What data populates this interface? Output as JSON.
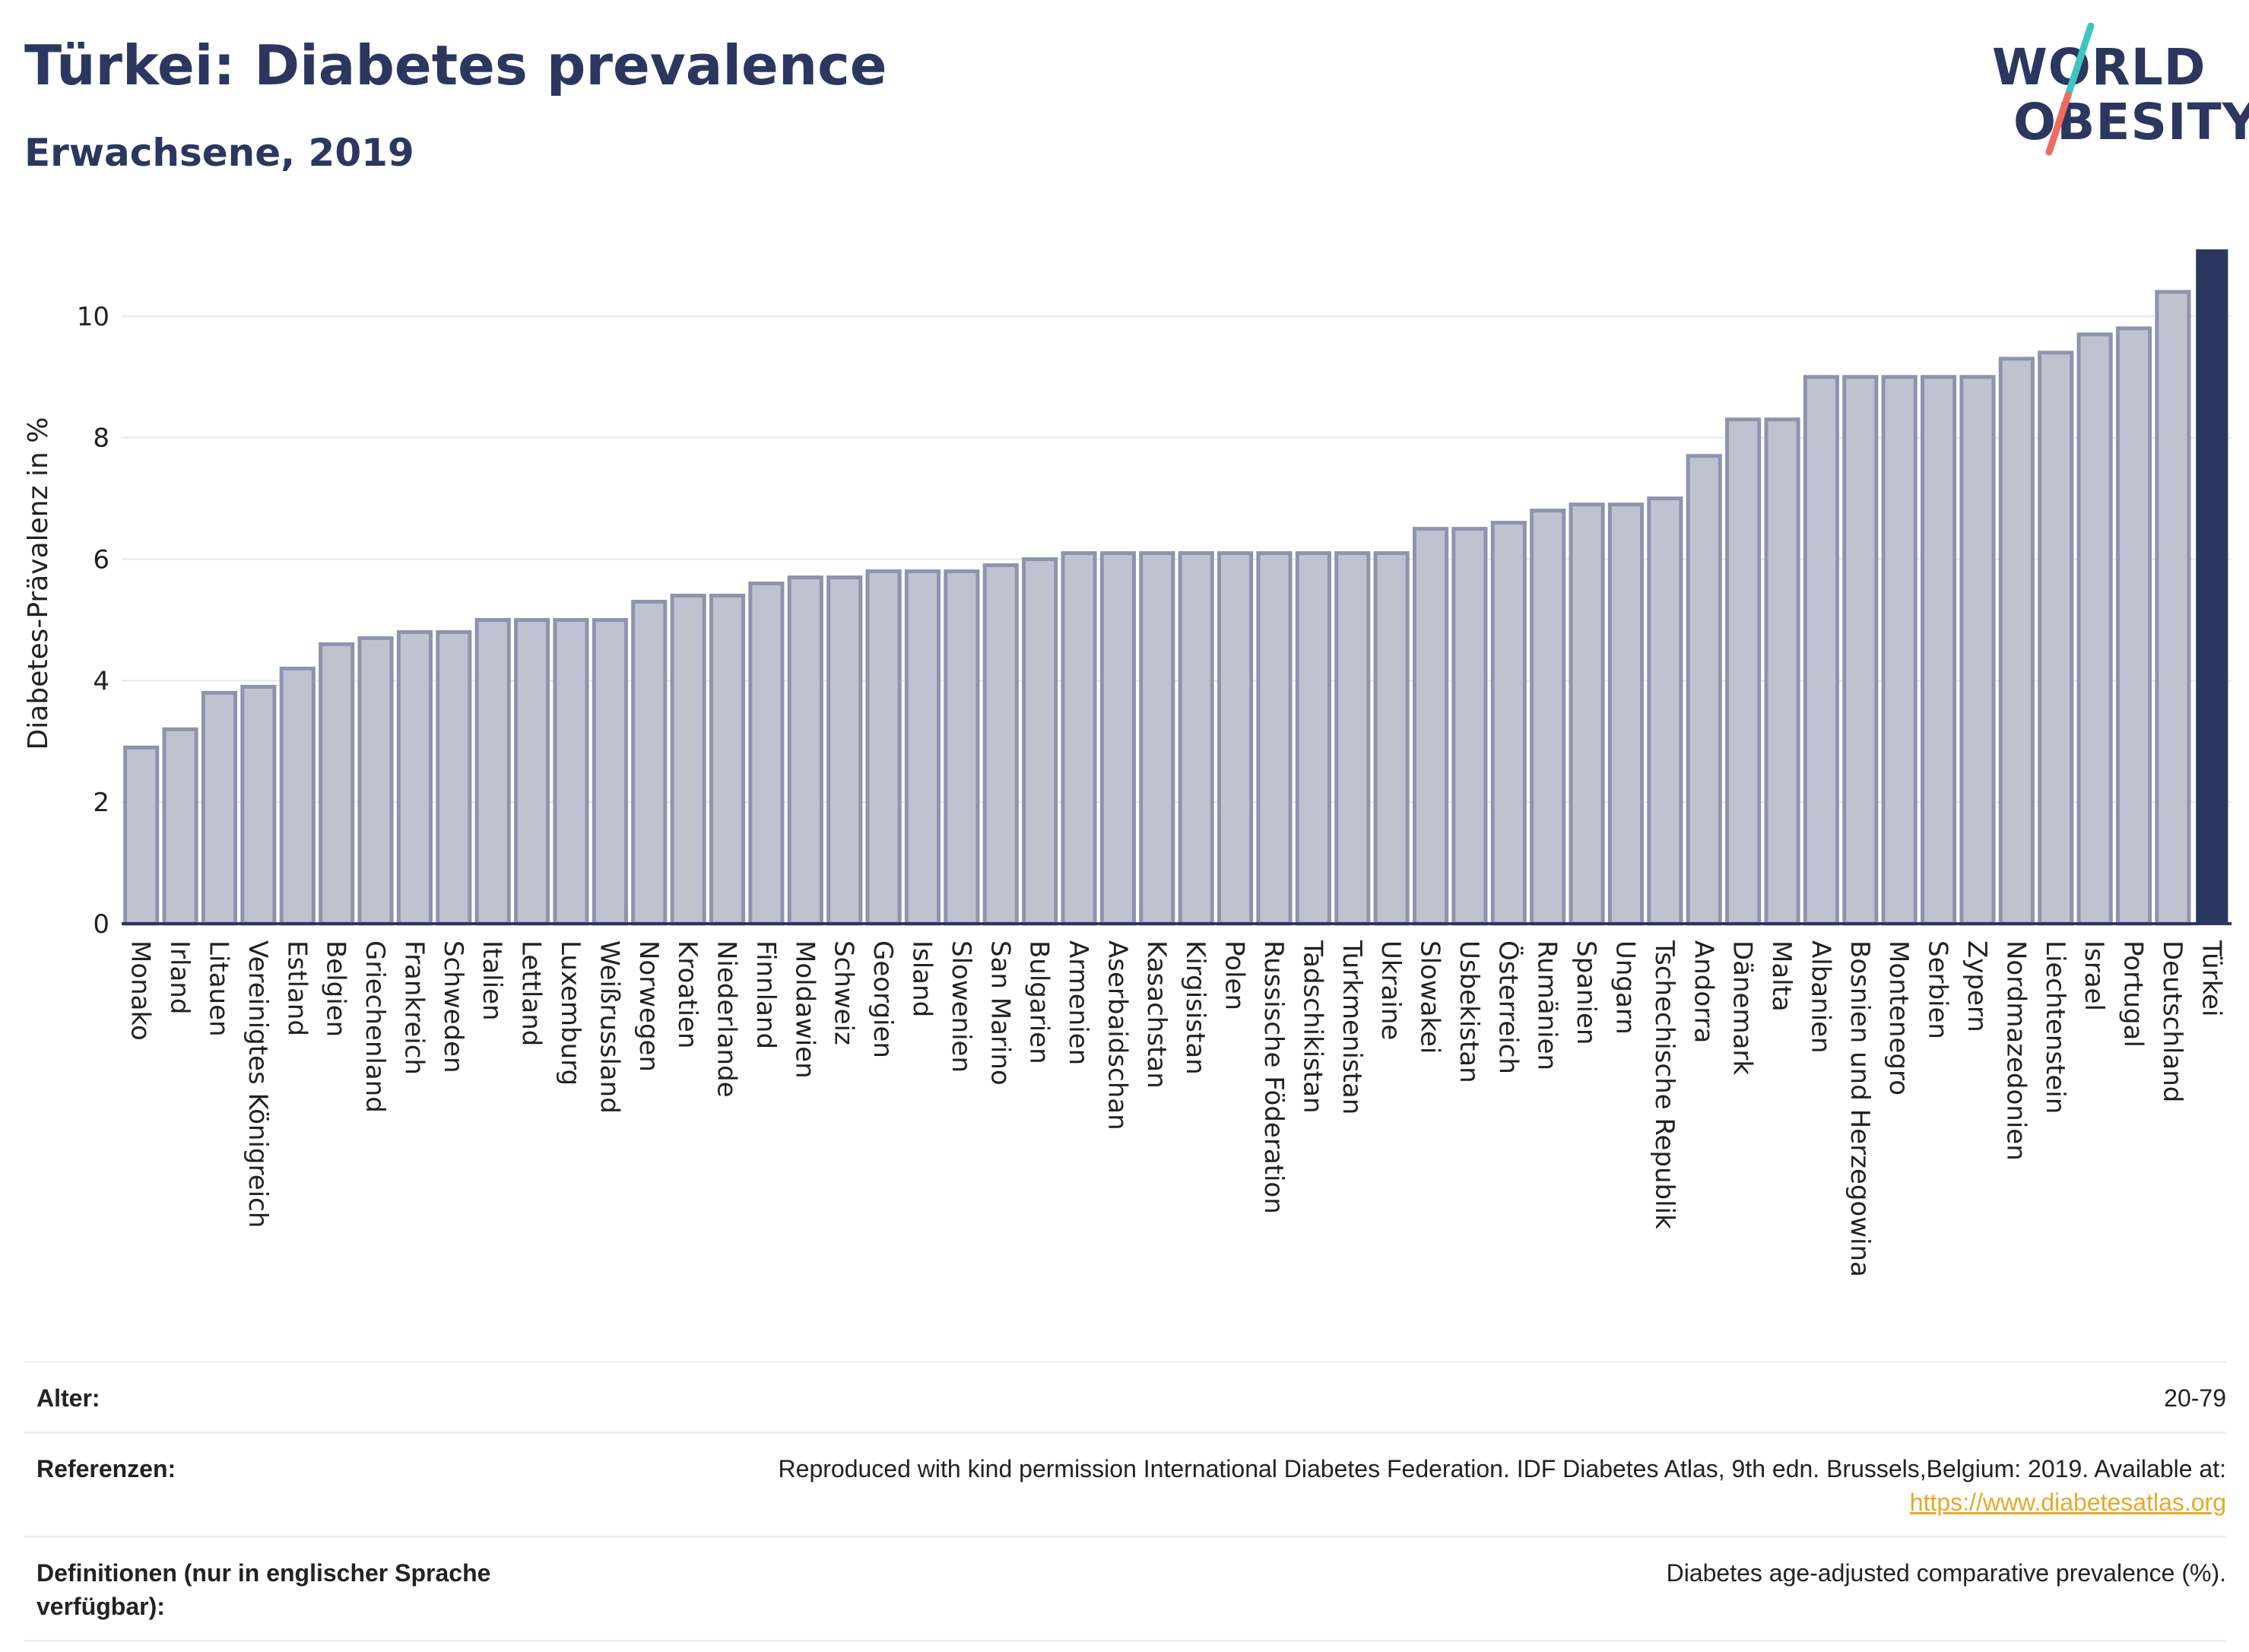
{
  "header": {
    "title": "Türkei: Diabetes prevalence",
    "subtitle": "Erwachsene, 2019"
  },
  "logo": {
    "line1": "WORLD",
    "line2": "OBESITY",
    "slash_color_top": "#3ec6c0",
    "slash_color_bottom": "#ef6b5e"
  },
  "colors": {
    "bar": "#bfc3d1",
    "bar_border": "#8e94ad",
    "highlight": "#2c3760",
    "grid": "#e6e8ef",
    "axis": "#2c3760"
  },
  "chart_data": {
    "type": "bar",
    "ylabel": "Diabetes-Prävalenz in %",
    "xlabel": "",
    "ylim": [
      0,
      11.2
    ],
    "yticks": [
      0,
      2,
      4,
      6,
      8,
      10
    ],
    "grid": true,
    "highlight": "Türkei",
    "categories": [
      "Monako",
      "Irland",
      "Litauen",
      "Vereinigtes Königreich",
      "Estland",
      "Belgien",
      "Griechenland",
      "Frankreich",
      "Schweden",
      "Italien",
      "Lettland",
      "Luxemburg",
      "Weißrussland",
      "Norwegen",
      "Kroatien",
      "Niederlande",
      "Finnland",
      "Moldawien",
      "Schweiz",
      "Georgien",
      "Island",
      "Slowenien",
      "San Marino",
      "Bulgarien",
      "Armenien",
      "Aserbaidschan",
      "Kasachstan",
      "Kirgisistan",
      "Polen",
      "Russische Föderation",
      "Tadschikistan",
      "Turkmenistan",
      "Ukraine",
      "Slowakei",
      "Usbekistan",
      "Österreich",
      "Rumänien",
      "Spanien",
      "Ungarn",
      "Tschechische Republik",
      "Andorra",
      "Dänemark",
      "Malta",
      "Albanien",
      "Bosnien und Herzegowina",
      "Montenegro",
      "Serbien",
      "Zypern",
      "Nordmazedonien",
      "Liechtenstein",
      "Israel",
      "Portugal",
      "Deutschland",
      "Türkei"
    ],
    "values": [
      2.9,
      3.2,
      3.8,
      3.9,
      4.2,
      4.6,
      4.7,
      4.8,
      4.8,
      5.0,
      5.0,
      5.0,
      5.0,
      5.3,
      5.4,
      5.4,
      5.6,
      5.7,
      5.7,
      5.8,
      5.8,
      5.8,
      5.9,
      6.0,
      6.1,
      6.1,
      6.1,
      6.1,
      6.1,
      6.1,
      6.1,
      6.1,
      6.1,
      6.5,
      6.5,
      6.6,
      6.8,
      6.9,
      6.9,
      7.0,
      7.7,
      8.3,
      8.3,
      9.0,
      9.0,
      9.0,
      9.0,
      9.0,
      9.3,
      9.4,
      9.7,
      9.8,
      10.4,
      11.1
    ]
  },
  "info": {
    "age_label": "Alter:",
    "age_value": "20-79",
    "ref_label": "Referenzen:",
    "ref_text": "Reproduced with kind permission International Diabetes Federation. IDF Diabetes Atlas, 9th edn. Brussels,Belgium: 2019. Available at:",
    "ref_link": "https://www.diabetesatlas.org",
    "def_label": "Definitionen (nur in englischer Sprache verfügbar):",
    "def_value": "Diabetes age-adjusted comparative prevalence (%)."
  }
}
